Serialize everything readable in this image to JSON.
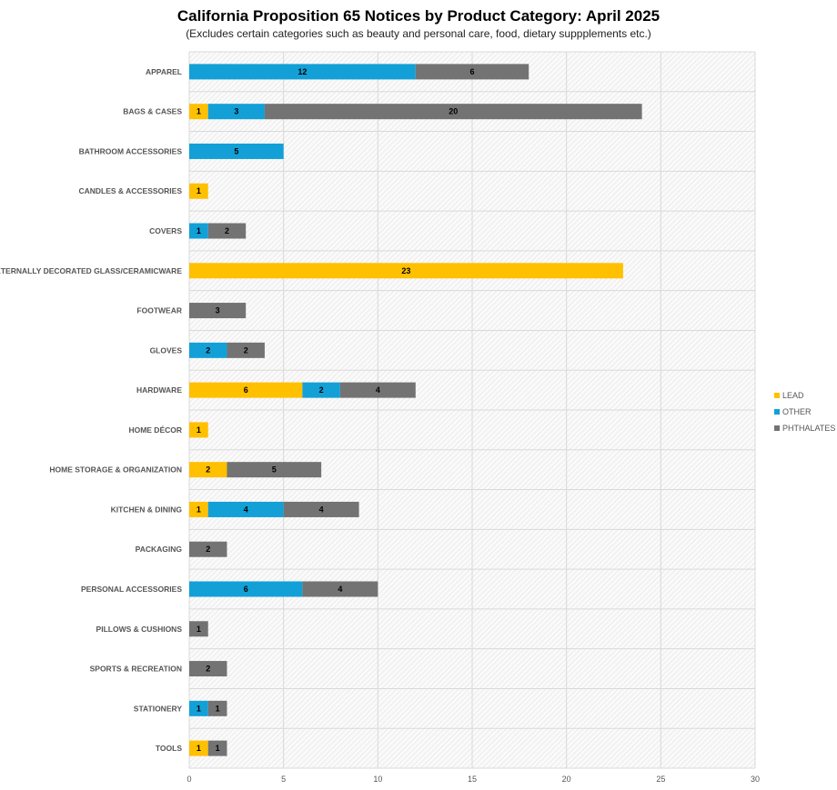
{
  "chart_data": {
    "type": "bar",
    "orientation": "horizontal",
    "stacked": true,
    "title": "California Proposition 65 Notices by Product Category: April 2025",
    "subtitle": "(Excludes certain categories such as beauty and personal care, food, dietary suppplements etc.)",
    "xlabel": "",
    "ylabel": "",
    "xlim": [
      0,
      30
    ],
    "xticks": [
      0,
      5,
      10,
      15,
      20,
      25,
      30
    ],
    "grid": true,
    "legend_position": "right",
    "categories": [
      "APPAREL",
      "BAGS & CASES",
      "BATHROOM ACCESSORIES",
      "CANDLES & ACCESSORIES",
      "COVERS",
      "EXTERNALLY DECORATED GLASS/CERAMICWARE",
      "FOOTWEAR",
      "GLOVES",
      "HARDWARE",
      "HOME DÉCOR",
      "HOME STORAGE & ORGANIZATION",
      "KITCHEN & DINING",
      "PACKAGING",
      "PERSONAL ACCESSORIES",
      "PILLOWS & CUSHIONS",
      "SPORTS & RECREATION",
      "STATIONERY",
      "TOOLS"
    ],
    "series": [
      {
        "name": "LEAD",
        "color": "#FFC000",
        "values": [
          0,
          1,
          0,
          1,
          0,
          23,
          0,
          0,
          6,
          1,
          2,
          1,
          0,
          0,
          0,
          0,
          0,
          1
        ]
      },
      {
        "name": "OTHER",
        "color": "#12A0D7",
        "values": [
          12,
          3,
          5,
          0,
          1,
          0,
          0,
          2,
          2,
          0,
          0,
          4,
          0,
          6,
          0,
          0,
          1,
          0
        ]
      },
      {
        "name": "PHTHALATES",
        "color": "#737373",
        "values": [
          6,
          20,
          0,
          0,
          2,
          0,
          3,
          2,
          4,
          0,
          5,
          4,
          2,
          4,
          1,
          2,
          1,
          1
        ]
      }
    ]
  }
}
